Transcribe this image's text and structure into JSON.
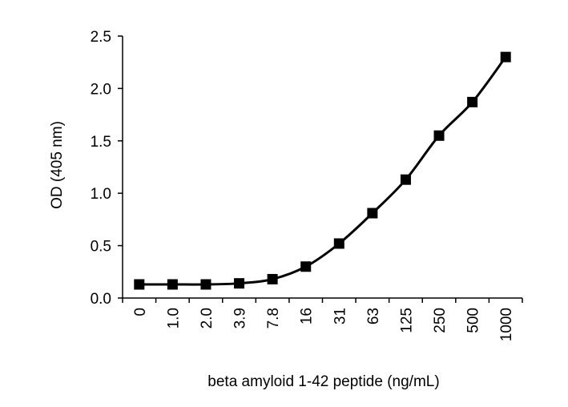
{
  "chart_data": {
    "type": "line",
    "title": "",
    "xlabel": "beta amyloid 1-42 peptide (ng/mL)",
    "ylabel": "OD (405 nm)",
    "categories": [
      "0",
      "1.0",
      "2.0",
      "3.9",
      "7.8",
      "16",
      "31",
      "63",
      "125",
      "250",
      "500",
      "1000"
    ],
    "series": [
      {
        "values": [
          0.13,
          0.13,
          0.13,
          0.14,
          0.18,
          0.3,
          0.52,
          0.81,
          1.13,
          1.55,
          1.87,
          2.3
        ]
      }
    ],
    "ylim": [
      0,
      2.5
    ],
    "yticks": [
      "0.0",
      "0.5",
      "1.0",
      "1.5",
      "2.0",
      "2.5"
    ],
    "grid": false,
    "legend": "none",
    "colors": {
      "line": "#000000",
      "marker": "#000000"
    }
  }
}
